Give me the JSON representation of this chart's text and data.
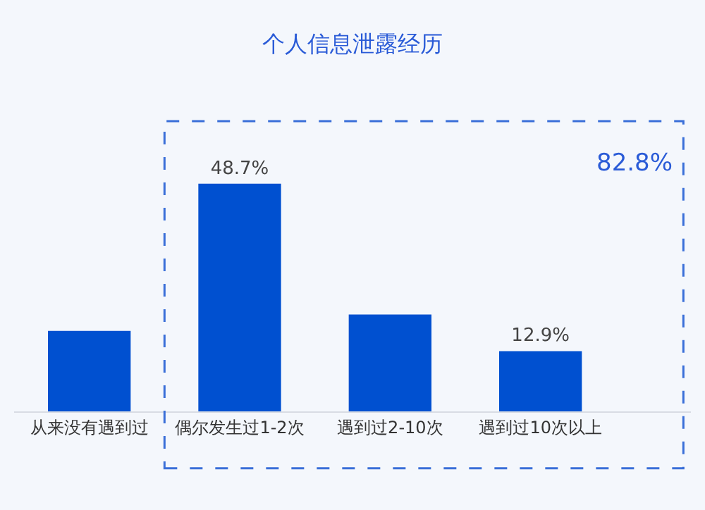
{
  "chart_data": {
    "type": "bar",
    "title": "个人信息泄露经历",
    "categories": [
      "从来没有遇到过",
      "偶尔发生过1-2次",
      "遇到过2-10次",
      "遇到过10次以上"
    ],
    "values": [
      17.2,
      48.7,
      20.7,
      12.9
    ],
    "value_labels": [
      null,
      "48.7%",
      null,
      "12.9%"
    ],
    "color": "#0050d0",
    "annotations": [
      "82.8%"
    ]
  }
}
